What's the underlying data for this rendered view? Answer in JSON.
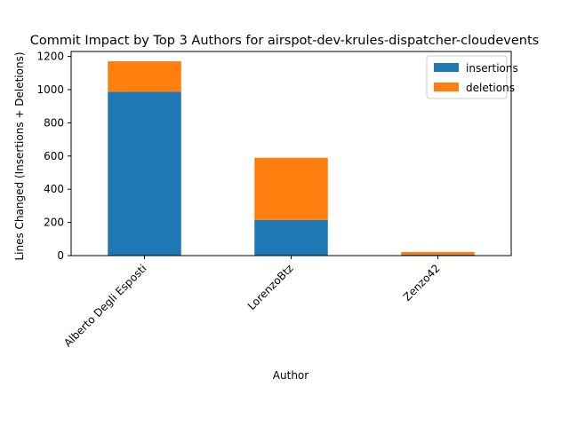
{
  "chart_data": {
    "type": "bar",
    "stacked": true,
    "title": "Commit Impact by Top 3 Authors for airspot-dev-krules-dispatcher-cloudevents",
    "xlabel": "Author",
    "ylabel": "Lines Changed (Insertions + Deletions)",
    "categories": [
      "Alberto Degli Esposti",
      "LorenzoBtz",
      "Zenzo42"
    ],
    "series": [
      {
        "name": "insertions",
        "color": "#1f77b4",
        "values": [
          988,
          215,
          6
        ]
      },
      {
        "name": "deletions",
        "color": "#ff7f0e",
        "values": [
          183,
          375,
          16
        ]
      }
    ],
    "ylim": [
      0,
      1230
    ],
    "yticks": [
      0,
      200,
      400,
      600,
      800,
      1000,
      1200
    ],
    "grid": false,
    "legend_position": "top-right"
  }
}
